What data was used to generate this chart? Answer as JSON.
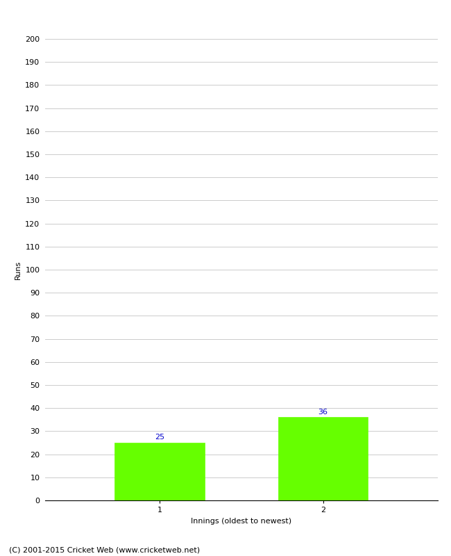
{
  "values": [
    25,
    36
  ],
  "categories": [
    "1",
    "2"
  ],
  "bar_color": "#66ff00",
  "bar_edge_color": "#66ff00",
  "xlabel": "Innings (oldest to newest)",
  "ylabel": "Runs",
  "ylim": [
    0,
    200
  ],
  "yticks": [
    0,
    10,
    20,
    30,
    40,
    50,
    60,
    70,
    80,
    90,
    100,
    110,
    120,
    130,
    140,
    150,
    160,
    170,
    180,
    190,
    200
  ],
  "label_color": "#0000cc",
  "label_fontsize": 8,
  "axis_fontsize": 8,
  "tick_fontsize": 8,
  "footer": "(C) 2001-2015 Cricket Web (www.cricketweb.net)",
  "footer_fontsize": 8,
  "background_color": "#ffffff",
  "grid_color": "#cccccc"
}
